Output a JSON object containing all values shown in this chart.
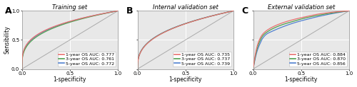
{
  "panels": [
    {
      "label": "A",
      "title": "Training set",
      "legend": [
        {
          "text": "1-year OS AUC: 0.777",
          "color": "#E87070"
        },
        {
          "text": "3-year OS AUC: 0.761",
          "color": "#50A050"
        },
        {
          "text": "5-year OS AUC: 0.772",
          "color": "#5080D0"
        }
      ],
      "curves": [
        {
          "auc": 0.777,
          "alpha": 0.283,
          "color": "#E87070",
          "type": "smooth"
        },
        {
          "auc": 0.761,
          "alpha": 0.315,
          "color": "#50A050",
          "type": "smooth"
        },
        {
          "auc": 0.772,
          "alpha": 0.296,
          "color": "#5080D0",
          "type": "smooth"
        }
      ]
    },
    {
      "label": "B",
      "title": "Internal validation set",
      "legend": [
        {
          "text": "1-year OS AUC: 0.735",
          "color": "#E87070"
        },
        {
          "text": "3-year OS AUC: 0.737",
          "color": "#50A050"
        },
        {
          "text": "5-year OS AUC: 0.739",
          "color": "#5080D0"
        }
      ],
      "curves": [
        {
          "auc": 0.735,
          "alpha": 0.36,
          "color": "#E87070",
          "type": "smooth"
        },
        {
          "auc": 0.737,
          "alpha": 0.355,
          "color": "#50A050",
          "type": "smooth"
        },
        {
          "auc": 0.739,
          "alpha": 0.35,
          "color": "#5080D0",
          "type": "smooth"
        }
      ]
    },
    {
      "label": "C",
      "title": "External validation set",
      "legend": [
        {
          "text": "1-year OS AUC: 0.884",
          "color": "#E87070"
        },
        {
          "text": "3-year OS AUC: 0.870",
          "color": "#50A050"
        },
        {
          "text": "5-year OS AUC: 0.856",
          "color": "#5080D0"
        }
      ],
      "curves": [
        {
          "auc": 0.884,
          "color": "#E87070",
          "type": "step",
          "pts_x": [
            0.0,
            0.04,
            0.07,
            0.1,
            0.14,
            0.2,
            0.3,
            0.42,
            0.55,
            0.7,
            0.85,
            1.0
          ],
          "pts_y": [
            0.0,
            0.38,
            0.52,
            0.6,
            0.66,
            0.72,
            0.79,
            0.85,
            0.9,
            0.95,
            0.98,
            1.0
          ]
        },
        {
          "auc": 0.87,
          "color": "#50A050",
          "type": "step",
          "pts_x": [
            0.0,
            0.04,
            0.07,
            0.1,
            0.14,
            0.2,
            0.3,
            0.42,
            0.55,
            0.7,
            0.85,
            1.0
          ],
          "pts_y": [
            0.0,
            0.34,
            0.48,
            0.57,
            0.63,
            0.69,
            0.76,
            0.82,
            0.88,
            0.93,
            0.97,
            1.0
          ]
        },
        {
          "auc": 0.856,
          "color": "#5080D0",
          "type": "step",
          "pts_x": [
            0.0,
            0.04,
            0.07,
            0.1,
            0.14,
            0.2,
            0.3,
            0.42,
            0.55,
            0.7,
            0.85,
            1.0
          ],
          "pts_y": [
            0.0,
            0.3,
            0.43,
            0.53,
            0.6,
            0.65,
            0.72,
            0.79,
            0.85,
            0.91,
            0.96,
            1.0
          ]
        }
      ]
    }
  ],
  "xlabel": "1-specificity",
  "ylabel": "Sensibility",
  "xticks": [
    0.0,
    0.5,
    1.0
  ],
  "yticks": [
    0.0,
    0.5,
    1.0
  ],
  "xticklabels": [
    "0.0",
    "0.5",
    "1.0"
  ],
  "yticklabels": [
    "0.0",
    "0.5",
    "1.0"
  ],
  "bg_color": "#e8e8e8",
  "grid_color": "#ffffff",
  "diag_color": "#aaaaaa",
  "title_fontsize": 6.0,
  "label_fontsize": 5.5,
  "tick_fontsize": 5.0,
  "legend_fontsize": 4.5,
  "panel_label_fontsize": 9,
  "curve_lw": 0.9
}
